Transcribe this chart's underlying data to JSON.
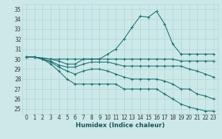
{
  "xlabel": "Humidex (Indice chaleur)",
  "xlim": [
    -0.5,
    23.5
  ],
  "ylim": [
    24.5,
    35.5
  ],
  "yticks": [
    25,
    26,
    27,
    28,
    29,
    30,
    31,
    32,
    33,
    34,
    35
  ],
  "xticks": [
    0,
    1,
    2,
    3,
    4,
    5,
    6,
    7,
    8,
    9,
    10,
    11,
    12,
    13,
    14,
    15,
    16,
    17,
    18,
    19,
    20,
    21,
    22,
    23
  ],
  "bg_color": "#cce8e8",
  "grid_color": "#b0d4d4",
  "line_color": "#1a7070",
  "lines": [
    [
      30.2,
      30.2,
      30.1,
      30.0,
      30.0,
      30.0,
      30.0,
      30.0,
      30.0,
      30.0,
      30.5,
      31.0,
      32.0,
      33.2,
      34.3,
      34.2,
      34.8,
      33.5,
      31.5,
      30.5,
      30.5,
      30.5,
      30.5,
      30.5
    ],
    [
      30.2,
      30.2,
      30.1,
      30.0,
      29.8,
      29.5,
      29.5,
      30.0,
      30.0,
      30.0,
      30.0,
      30.0,
      30.0,
      30.0,
      30.0,
      30.0,
      30.0,
      30.0,
      30.0,
      29.8,
      29.8,
      29.8,
      29.8,
      29.8
    ],
    [
      30.2,
      30.2,
      30.0,
      29.8,
      29.4,
      29.2,
      29.2,
      29.5,
      29.7,
      29.7,
      29.7,
      29.5,
      29.3,
      29.3,
      29.3,
      29.3,
      29.3,
      29.3,
      29.3,
      29.3,
      29.0,
      28.8,
      28.5,
      28.2
    ],
    [
      30.2,
      30.2,
      30.0,
      29.7,
      29.2,
      28.8,
      28.5,
      28.8,
      29.0,
      29.0,
      28.8,
      28.5,
      28.2,
      28.0,
      28.0,
      28.0,
      28.0,
      27.8,
      27.5,
      27.0,
      27.0,
      26.5,
      26.3,
      26.0
    ],
    [
      30.2,
      30.2,
      30.0,
      29.5,
      28.8,
      28.0,
      27.5,
      27.5,
      27.5,
      27.5,
      27.5,
      27.5,
      27.0,
      27.0,
      27.0,
      27.0,
      27.0,
      26.5,
      26.0,
      25.5,
      25.2,
      25.0,
      24.8,
      24.8
    ]
  ]
}
